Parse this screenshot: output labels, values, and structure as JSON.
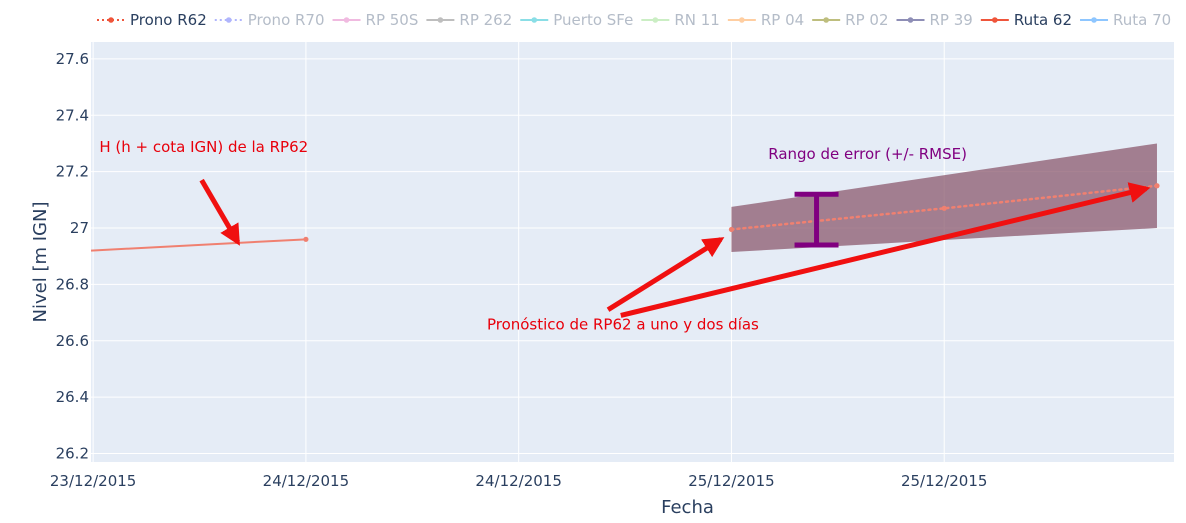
{
  "chart_data": {
    "type": "line",
    "xlabel": "Fecha",
    "ylabel": "Nivel [m IGN]",
    "xlim": [
      -0.01,
      5.08
    ],
    "ylim": [
      26.17,
      27.66
    ],
    "x_ticks": [
      {
        "value": 0,
        "label": "23/12/2015"
      },
      {
        "value": 1,
        "label": "24/12/2015"
      },
      {
        "value": 2,
        "label": "24/12/2015"
      },
      {
        "value": 3,
        "label": "25/12/2015"
      },
      {
        "value": 4,
        "label": "25/12/2015"
      }
    ],
    "y_ticks": [
      {
        "value": 26.2,
        "label": "26.2"
      },
      {
        "value": 26.4,
        "label": "26.4"
      },
      {
        "value": 26.6,
        "label": "26.6"
      },
      {
        "value": 26.8,
        "label": "26.8"
      },
      {
        "value": 27.0,
        "label": "27"
      },
      {
        "value": 27.2,
        "label": "27.2"
      },
      {
        "value": 27.4,
        "label": "27.4"
      },
      {
        "value": 27.6,
        "label": "27.6"
      }
    ],
    "grid": true,
    "background": "#e5ecf6",
    "legend": {
      "position": "top",
      "items": [
        {
          "name": "Prono R62",
          "color": "#ef553b",
          "style": "dotted",
          "active": true
        },
        {
          "name": "Prono R70",
          "color": "#636efa",
          "style": "dotted",
          "active": false
        },
        {
          "name": "RP 50S",
          "color": "#e377c2",
          "style": "solid",
          "active": false
        },
        {
          "name": "RP 262",
          "color": "#7f7f7f",
          "style": "solid",
          "active": false
        },
        {
          "name": "Puerto SFe",
          "color": "#17becf",
          "style": "solid",
          "active": false
        },
        {
          "name": "RN 11",
          "color": "#98df8a",
          "style": "solid",
          "active": false
        },
        {
          "name": "RP 04",
          "color": "#ff9f45",
          "style": "solid",
          "active": false
        },
        {
          "name": "RP 02",
          "color": "#7f7f00",
          "style": "solid",
          "active": false
        },
        {
          "name": "RP 39",
          "color": "#1f1f6f",
          "style": "solid",
          "active": false
        },
        {
          "name": "Ruta 62",
          "color": "#ef553b",
          "style": "solid",
          "active": true
        },
        {
          "name": "Ruta 70",
          "color": "#1f8fff",
          "style": "solid",
          "active": false
        }
      ]
    },
    "series": [
      {
        "name": "Ruta 62",
        "color": "#f08070",
        "style": "solid",
        "x": [
          -0.01,
          1.0
        ],
        "y": [
          26.92,
          26.96
        ]
      },
      {
        "name": "Prono R62",
        "color": "#f08070",
        "style": "dotted",
        "x": [
          3.0,
          4.0,
          5.0
        ],
        "y": [
          26.995,
          27.07,
          27.15
        ]
      }
    ],
    "error_band": {
      "color": "#8b5a6e",
      "opacity": 0.75,
      "upper": {
        "x": [
          3.0,
          5.0
        ],
        "y": [
          27.075,
          27.3
        ]
      },
      "lower": {
        "x": [
          3.0,
          5.0
        ],
        "y": [
          26.915,
          27.0
        ]
      }
    },
    "annotations": [
      {
        "text": "H (h + cota IGN) de la RP62",
        "color": "#e8000b",
        "x": 0.52,
        "y": 27.27
      },
      {
        "text": "Rango de error (+/- RMSE)",
        "color": "#800080",
        "x": 3.64,
        "y": 27.245
      },
      {
        "text": "Pronóstico de RP62 a uno y dos días",
        "color": "#e8000b",
        "x": 2.49,
        "y": 26.64
      }
    ],
    "arrows": [
      {
        "color": "#f01010",
        "from": [
          0.51,
          27.17
        ],
        "to": [
          0.68,
          26.95
        ]
      },
      {
        "color": "#f01010",
        "from": [
          2.42,
          26.71
        ],
        "to": [
          2.95,
          26.96
        ]
      },
      {
        "color": "#f01010",
        "from": [
          2.48,
          26.69
        ],
        "to": [
          4.95,
          27.14
        ]
      }
    ],
    "error_bar": {
      "color": "#800080",
      "x": 3.4,
      "y_low": 26.94,
      "y_high": 27.12
    }
  }
}
